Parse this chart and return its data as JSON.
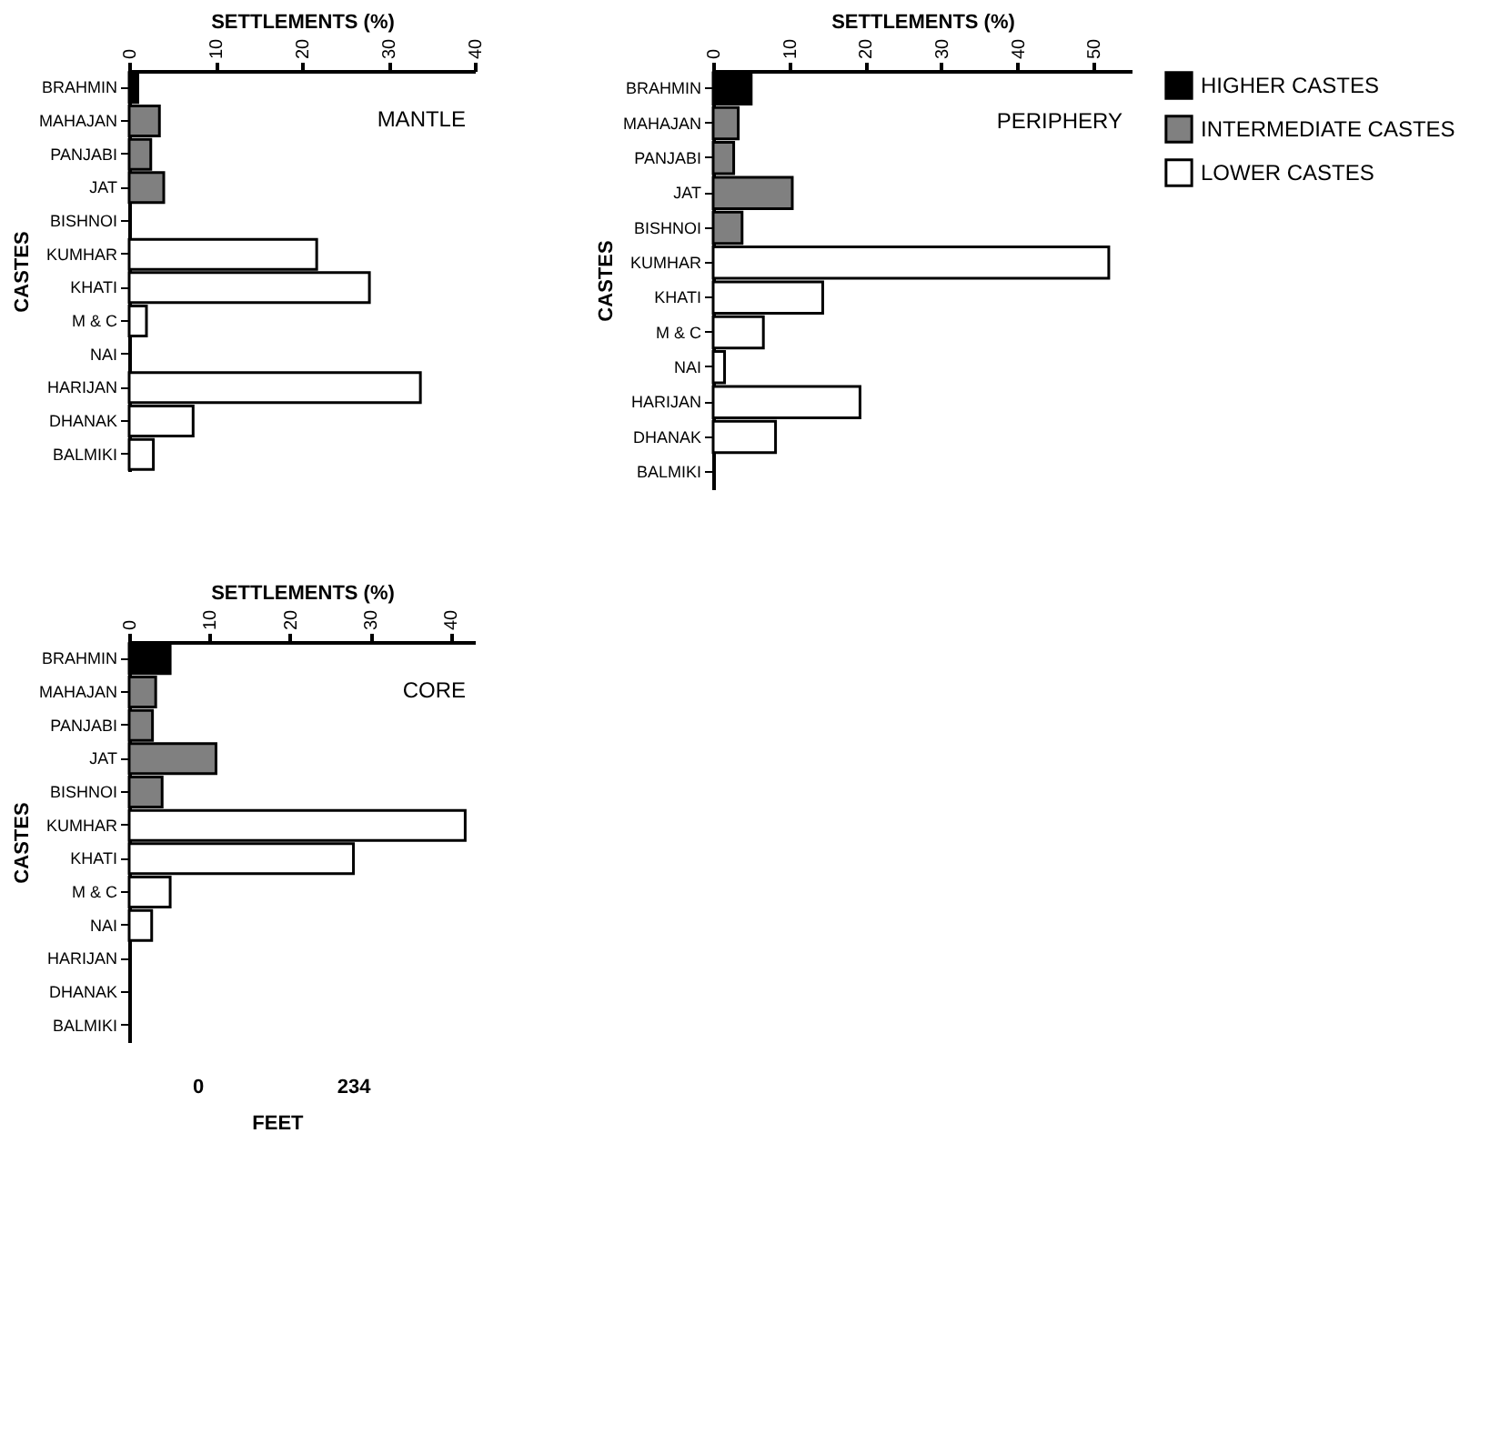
{
  "chart_data": [
    {
      "type": "bar",
      "orientation": "horizontal",
      "title": "MANTLE",
      "xlabel": "SETTLEMENTS (%)",
      "ylabel": "CASTES",
      "categories": [
        "BRAHMIN",
        "MAHAJAN",
        "PANJABI",
        "JAT",
        "BISHNOI",
        "KUMHAR",
        "KHATI",
        "M & C",
        "NAI",
        "HARIJAN",
        "DHANAK",
        "BALMIKI"
      ],
      "xlim": [
        0,
        40
      ],
      "xticks": [
        0,
        10,
        20,
        30,
        40
      ],
      "grid": false,
      "legend": "right",
      "series": [
        {
          "name": "HIGHER CASTES",
          "color": "#000000",
          "values": [
            1,
            null,
            null,
            null,
            null,
            null,
            null,
            null,
            null,
            null,
            null,
            null
          ]
        },
        {
          "name": "INTERMEDIATE CASTES",
          "color": "#808080",
          "values": [
            null,
            3.5,
            2.5,
            4,
            0,
            null,
            null,
            null,
            null,
            null,
            null,
            null
          ]
        },
        {
          "name": "LOWER CASTES",
          "color": "#ffffff",
          "values": [
            null,
            null,
            null,
            null,
            null,
            21.7,
            27.8,
            2,
            0,
            33.7,
            7.4,
            2.8
          ]
        }
      ]
    },
    {
      "type": "bar",
      "orientation": "horizontal",
      "title": "PERIPHERY",
      "xlabel": "SETTLEMENTS (%)",
      "ylabel": "CASTES",
      "categories": [
        "BRAHMIN",
        "MAHAJAN",
        "PANJABI",
        "JAT",
        "BISHNOI",
        "KUMHAR",
        "KHATI",
        "M & C",
        "NAI",
        "HARIJAN",
        "DHANAK",
        "BALMIKI"
      ],
      "xlim": [
        0,
        55
      ],
      "xticks": [
        0,
        10,
        20,
        30,
        40,
        50
      ],
      "grid": false,
      "legend": "right",
      "series": [
        {
          "name": "HIGHER CASTES",
          "color": "#000000",
          "values": [
            5,
            null,
            null,
            null,
            null,
            null,
            null,
            null,
            null,
            null,
            null,
            null
          ]
        },
        {
          "name": "INTERMEDIATE CASTES",
          "color": "#808080",
          "values": [
            null,
            3.3,
            2.7,
            10.4,
            3.8,
            null,
            null,
            null,
            null,
            null,
            null,
            null
          ]
        },
        {
          "name": "LOWER CASTES",
          "color": "#ffffff",
          "values": [
            null,
            null,
            null,
            null,
            null,
            52,
            14.4,
            6.6,
            1.5,
            19.3,
            8.2,
            0
          ]
        }
      ]
    },
    {
      "type": "bar",
      "orientation": "horizontal",
      "title": "CORE",
      "xlabel": "SETTLEMENTS (%)",
      "ylabel": "CASTES",
      "categories": [
        "BRAHMIN",
        "MAHAJAN",
        "PANJABI",
        "JAT",
        "BISHNOI",
        "KUMHAR",
        "KHATI",
        "M & C",
        "NAI",
        "HARIJAN",
        "DHANAK",
        "BALMIKI"
      ],
      "xlim": [
        0,
        43
      ],
      "xticks": [
        0,
        10,
        20,
        30,
        40
      ],
      "grid": false,
      "legend": "right",
      "annotations": [
        "0",
        "234",
        "FEET"
      ],
      "series": [
        {
          "name": "HIGHER CASTES",
          "color": "#000000",
          "values": [
            5.1,
            null,
            null,
            null,
            null,
            null,
            null,
            null,
            null,
            null,
            null,
            null
          ]
        },
        {
          "name": "INTERMEDIATE CASTES",
          "color": "#808080",
          "values": [
            null,
            3.3,
            2.9,
            10.8,
            4.1,
            null,
            null,
            null,
            null,
            null,
            null,
            null
          ]
        },
        {
          "name": "LOWER CASTES",
          "color": "#ffffff",
          "values": [
            null,
            null,
            null,
            null,
            null,
            41.8,
            27.9,
            5.1,
            2.8,
            0,
            0,
            0
          ]
        }
      ]
    }
  ]
}
